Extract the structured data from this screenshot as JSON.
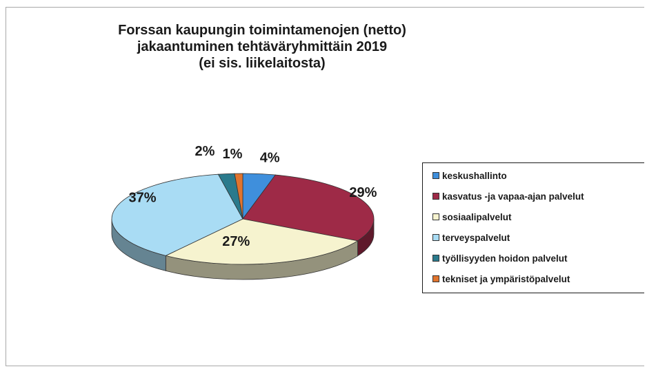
{
  "chart_data": {
    "type": "pie",
    "title_lines": [
      "Forssan kaupungin toimintamenojen (netto)",
      "jakaantuminen tehtäväryhmittäin 2019",
      "(ei sis. liikelaitosta)"
    ],
    "categories": [
      "keskushallinto",
      "kasvatus -ja vapaa-ajan palvelut",
      "sosiaalipalvelut",
      "terveyspalvelut",
      "työllisyyden hoidon palvelut",
      "tekniset ja ympäristöpalvelut"
    ],
    "values": [
      4,
      29,
      27,
      37,
      2,
      1
    ],
    "data_labels": [
      "4%",
      "29%",
      "27%",
      "37%",
      "2%",
      "1%"
    ],
    "colors": [
      "#3f8fdc",
      "#9e2a47",
      "#f6f3cf",
      "#a9dcf4",
      "#2a7a8c",
      "#e0742e"
    ],
    "legend_position": "right"
  }
}
